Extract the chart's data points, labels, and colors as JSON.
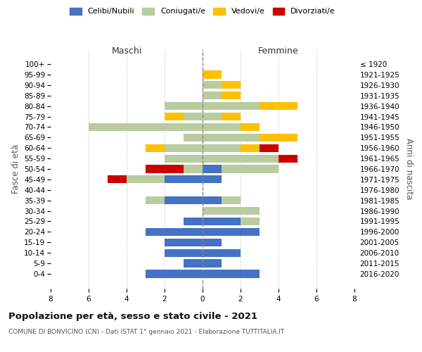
{
  "age_groups": [
    "0-4",
    "5-9",
    "10-14",
    "15-19",
    "20-24",
    "25-29",
    "30-34",
    "35-39",
    "40-44",
    "45-49",
    "50-54",
    "55-59",
    "60-64",
    "65-69",
    "70-74",
    "75-79",
    "80-84",
    "85-89",
    "90-94",
    "95-99",
    "100+"
  ],
  "birth_years": [
    "2016-2020",
    "2011-2015",
    "2006-2010",
    "2001-2005",
    "1996-2000",
    "1991-1995",
    "1986-1990",
    "1981-1985",
    "1976-1980",
    "1971-1975",
    "1966-1970",
    "1961-1965",
    "1956-1960",
    "1951-1955",
    "1946-1950",
    "1941-1945",
    "1936-1940",
    "1931-1935",
    "1926-1930",
    "1921-1925",
    "≤ 1920"
  ],
  "maschi": {
    "celibi": [
      3,
      1,
      2,
      2,
      3,
      1,
      0,
      2,
      0,
      2,
      0,
      0,
      0,
      0,
      0,
      0,
      0,
      0,
      0,
      0,
      0
    ],
    "coniugati": [
      0,
      0,
      0,
      0,
      0,
      0,
      0,
      1,
      0,
      2,
      1,
      2,
      2,
      1,
      6,
      1,
      2,
      0,
      0,
      0,
      0
    ],
    "vedovi": [
      0,
      0,
      0,
      0,
      0,
      0,
      0,
      0,
      0,
      0,
      0,
      0,
      1,
      0,
      0,
      1,
      0,
      0,
      0,
      0,
      0
    ],
    "divorziati": [
      0,
      0,
      0,
      0,
      0,
      0,
      0,
      0,
      0,
      1,
      2,
      0,
      0,
      0,
      0,
      0,
      0,
      0,
      0,
      0,
      0
    ]
  },
  "femmine": {
    "nubili": [
      3,
      1,
      2,
      1,
      3,
      2,
      0,
      1,
      0,
      1,
      1,
      0,
      0,
      0,
      0,
      0,
      0,
      0,
      0,
      0,
      0
    ],
    "coniugate": [
      0,
      0,
      0,
      0,
      0,
      1,
      3,
      1,
      0,
      0,
      3,
      4,
      2,
      3,
      2,
      1,
      3,
      1,
      1,
      0,
      0
    ],
    "vedove": [
      0,
      0,
      0,
      0,
      0,
      0,
      0,
      0,
      0,
      0,
      0,
      0,
      1,
      2,
      1,
      1,
      2,
      1,
      1,
      1,
      0
    ],
    "divorziate": [
      0,
      0,
      0,
      0,
      0,
      0,
      0,
      0,
      0,
      0,
      0,
      1,
      1,
      0,
      0,
      0,
      0,
      0,
      0,
      0,
      0
    ]
  },
  "colors": {
    "celibi": "#4472c4",
    "coniugati": "#b8cca0",
    "vedovi": "#ffc000",
    "divorziati": "#cc0000"
  },
  "title": "Popolazione per età, sesso e stato civile - 2021",
  "subtitle": "COMUNE DI BONVICINO (CN) - Dati ISTAT 1° gennaio 2021 - Elaborazione TUTTITALIA.IT",
  "xlabel_left": "Maschi",
  "xlabel_right": "Femmine",
  "ylabel_left": "Fasce di età",
  "ylabel_right": "Anni di nascita",
  "legend_labels": [
    "Celibi/Nubili",
    "Coniugati/e",
    "Vedovi/e",
    "Divorziati/e"
  ],
  "xlim": 8,
  "background_color": "#ffffff",
  "grid_color": "#cccccc"
}
